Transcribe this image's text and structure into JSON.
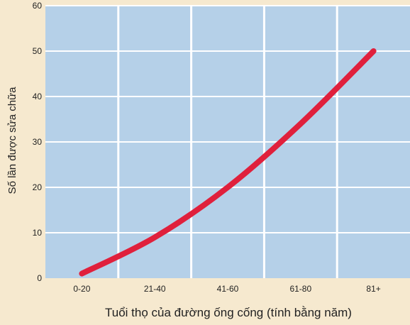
{
  "chart_data": {
    "type": "line",
    "categories": [
      "0-20",
      "21-40",
      "41-60",
      "61-80",
      "81+"
    ],
    "series": [
      {
        "values": [
          1,
          9,
          20,
          34,
          50
        ]
      }
    ],
    "xlabel": "Tuổi thọ của đường ống cống (tính bằng năm)",
    "ylabel": "Số lần được sửa chữa",
    "ylim": [
      0,
      60
    ],
    "yticks": [
      0,
      10,
      20,
      30,
      40,
      50,
      60
    ],
    "grid": true,
    "colors": {
      "background": "#f6e9cf",
      "plot_area": "#b5d0e8",
      "grid": "#ffffff",
      "line": "#e0203c"
    }
  }
}
